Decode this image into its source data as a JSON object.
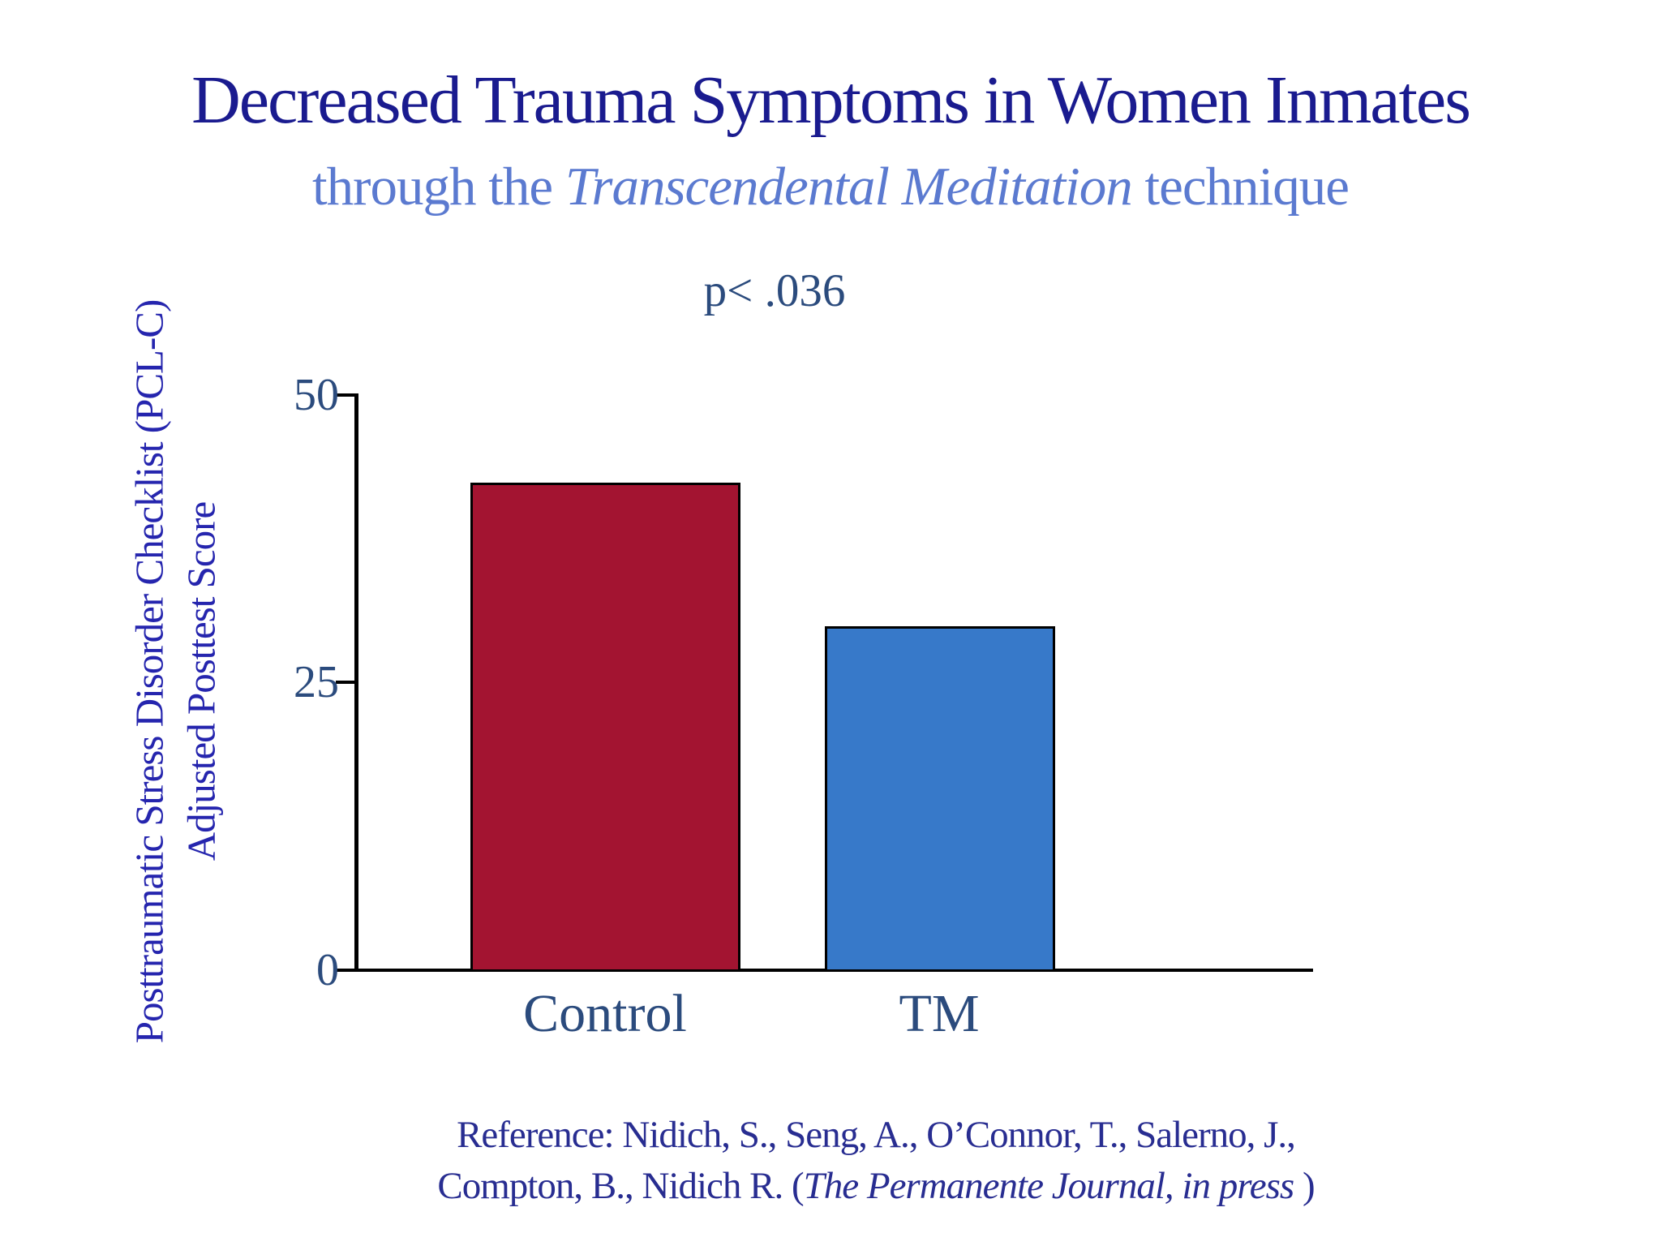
{
  "title": "Decreased Trauma Symptoms in Women Inmates",
  "subtitle": {
    "pre": "through the ",
    "italic": "Transcendental Meditation",
    "post": " technique"
  },
  "p_value": "p< .036",
  "y_axis": {
    "title_line1": "Posttraumatic Stress Disorder Checklist (PCL-C)",
    "title_line2": "Adjusted Posttest Score",
    "ticks": [
      "50",
      "25",
      "0"
    ]
  },
  "reference": {
    "line1": "Reference: Nidich, S., Seng, A., O’Connor, T., Salerno, J.,",
    "line2_pre": "Compton, B., Nidich R. (",
    "line2_italic": "The Permanente Journal, in press",
    "line2_post": " )"
  },
  "colors": {
    "title_navy": "#1a1b8f",
    "subtitle_blue": "#5b7ad0",
    "axis_text_slate": "#2b4b7d",
    "y_title_blue": "#2525ae",
    "reference_navy": "#282d91",
    "control_bar_red": "#a31431",
    "tm_bar_blue": "#3779c9",
    "axis_black": "#000000"
  },
  "chart_data": {
    "type": "bar",
    "title": "Decreased Trauma Symptoms in Women Inmates through the Transcendental Meditation technique",
    "annotation": "p< .036",
    "categories": [
      "Control",
      "TM"
    ],
    "values": [
      42.3,
      29.9
    ],
    "series_colors": [
      "#a31431",
      "#3779c9"
    ],
    "xlabel": "",
    "ylabel": "Posttraumatic Stress Disorder Checklist (PCL-C) Adjusted Posttest Score",
    "ylim": [
      0,
      50
    ],
    "yticks": [
      0,
      25,
      50
    ],
    "grid": false,
    "legend": "none"
  }
}
